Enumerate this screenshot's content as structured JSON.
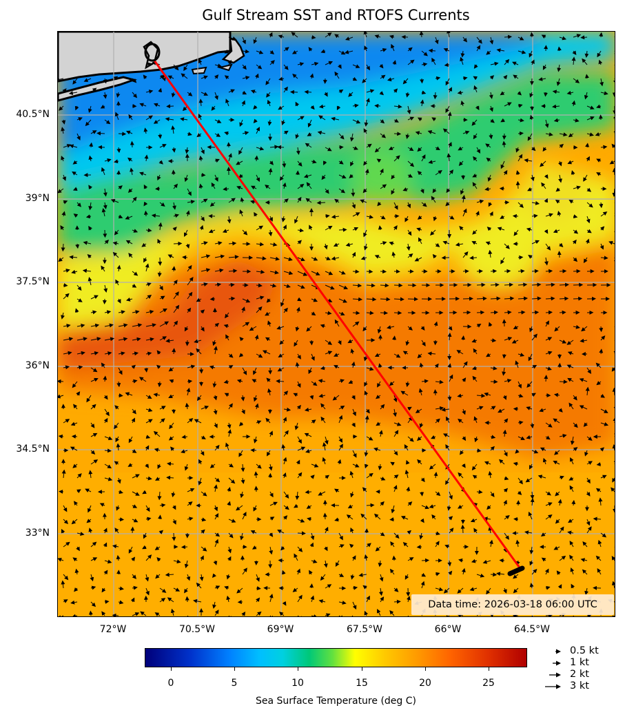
{
  "title": "Gulf Stream SST and RTOFS Currents",
  "map": {
    "lat_labels": [
      "40.5°N",
      "39°N",
      "37.5°N",
      "36°N",
      "34.5°N",
      "33°N"
    ],
    "lon_labels": [
      "72°W",
      "70.5°W",
      "69°W",
      "67.5°W",
      "66°W",
      "64.5°W"
    ],
    "extent": {
      "lon_min": -73.0,
      "lon_max": -63.0,
      "lat_min": 31.5,
      "lat_max": 42.0
    },
    "land_color": "#d3d3d3",
    "grid_color": "#b0b0b0",
    "track_color": "#ff0000",
    "track": {
      "start": {
        "lon": -71.25,
        "lat": 41.45
      },
      "end": {
        "lon": -64.6,
        "lat": 32.3
      }
    }
  },
  "data_time": "Data time: 2026-03-18 06:00 UTC",
  "colorbar": {
    "title": "Sea Surface Temperature (deg C)",
    "min": -2,
    "max": 28,
    "ticks": [
      0,
      5,
      10,
      15,
      20,
      25
    ],
    "colors": [
      "#00007a",
      "#0080ff",
      "#00bfff",
      "#00c878",
      "#ffff00",
      "#ff9600",
      "#b00000"
    ]
  },
  "quiver_key": [
    {
      "label": "0.5 kt",
      "speed": 0.5
    },
    {
      "label": "1 kt",
      "speed": 1
    },
    {
      "label": "2 kt",
      "speed": 2
    },
    {
      "label": "3 kt",
      "speed": 3
    }
  ]
}
